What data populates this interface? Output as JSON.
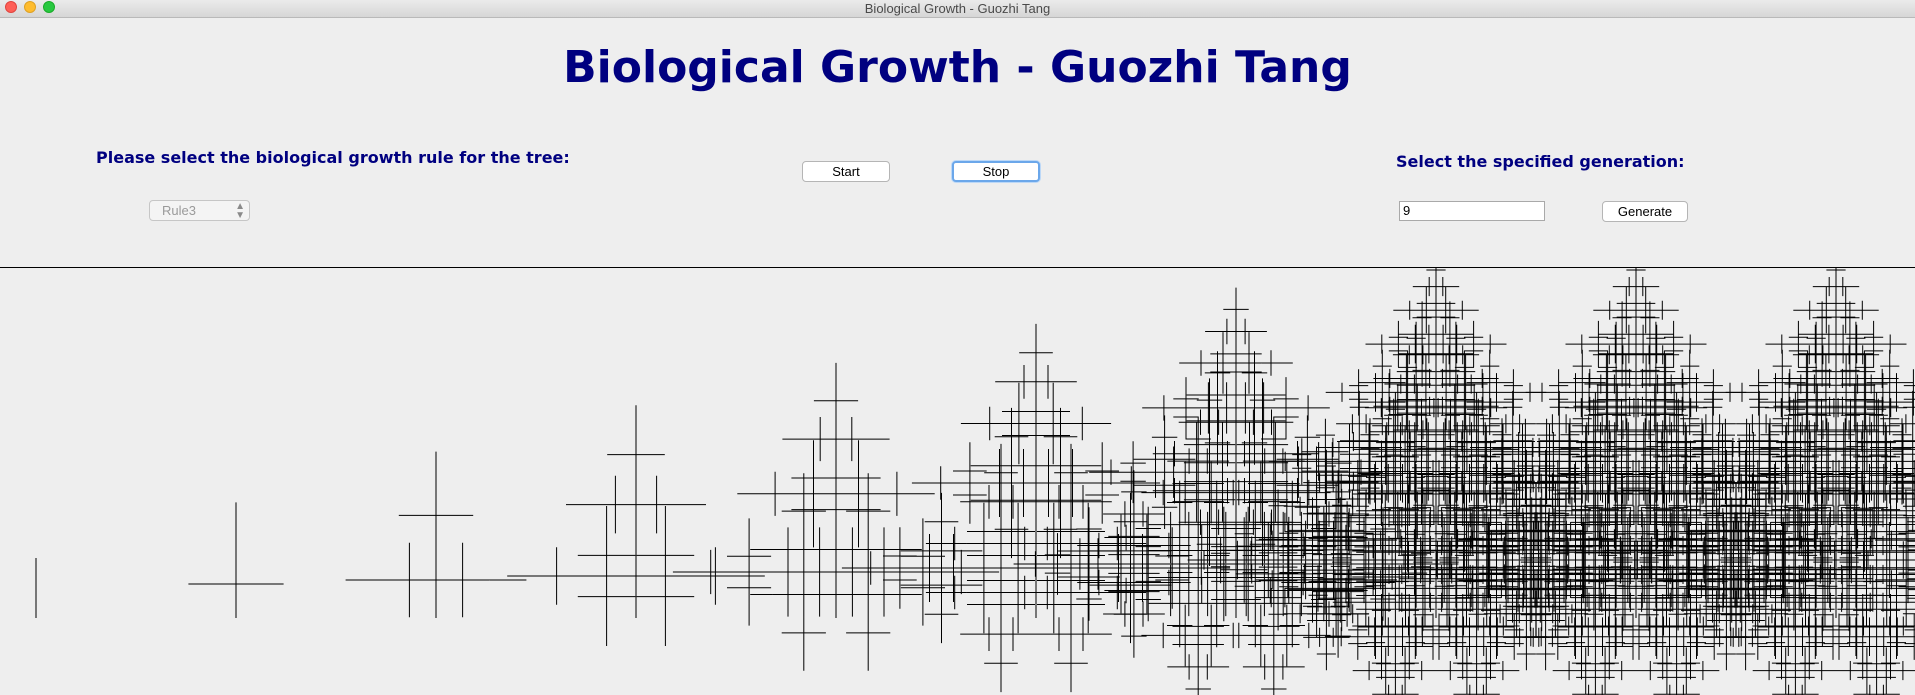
{
  "window": {
    "title": "Biological Growth - Guozhi Tang"
  },
  "header": {
    "title": "Biological Growth - Guozhi Tang"
  },
  "rule_panel": {
    "prompt": "Please select the biological growth rule for the tree:",
    "selected_rule": "Rule3"
  },
  "controls": {
    "start_label": "Start",
    "stop_label": "Stop"
  },
  "generation_panel": {
    "prompt": "Select the specified generation:",
    "value": "9",
    "generate_label": "Generate"
  },
  "canvas": {
    "stroke_color": "#000000",
    "generations_shown": [
      0,
      1,
      2,
      3,
      4,
      5,
      6,
      7,
      8,
      9
    ]
  },
  "colors": {
    "title": "#000080",
    "background": "#eeeeee",
    "focus_ring": "#6ba7ea"
  }
}
